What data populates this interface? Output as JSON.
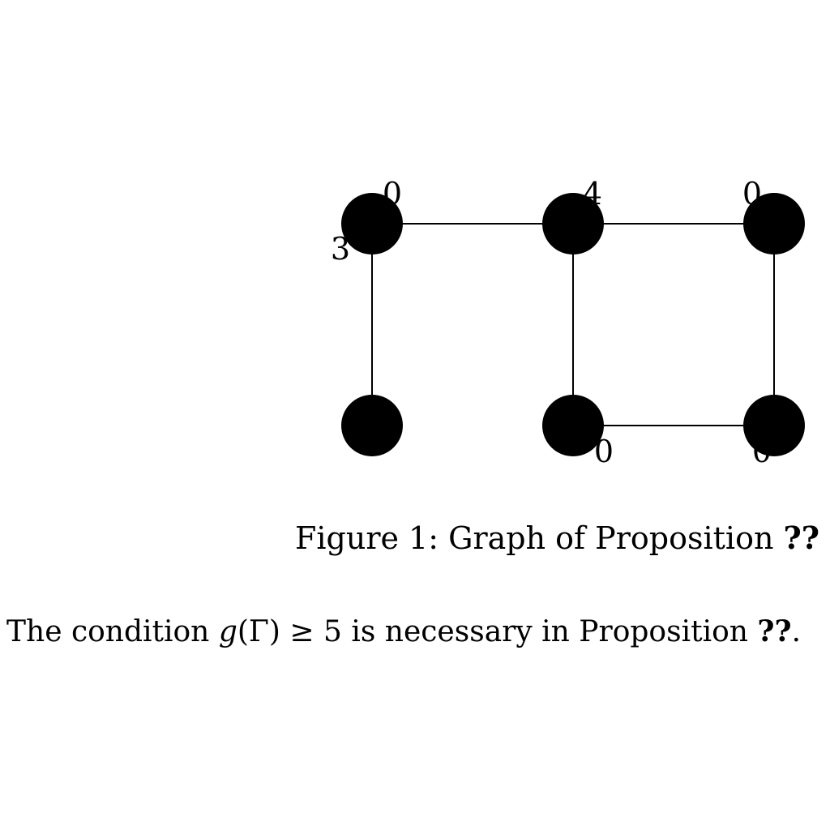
{
  "figure": {
    "vertices": [
      {
        "id": "v1",
        "label": "0",
        "label2": "3"
      },
      {
        "id": "v2",
        "label": "4"
      },
      {
        "id": "v3",
        "label": "0"
      },
      {
        "id": "v4",
        "label": ""
      },
      {
        "id": "v5",
        "label": "0"
      },
      {
        "id": "v6",
        "label": "0"
      }
    ],
    "edges": [
      [
        "v1",
        "v2"
      ],
      [
        "v2",
        "v3"
      ],
      [
        "v1",
        "v4"
      ],
      [
        "v2",
        "v5"
      ],
      [
        "v3",
        "v6"
      ],
      [
        "v5",
        "v6"
      ]
    ],
    "caption_prefix": "Figure 1: Graph of Proposition ",
    "caption_ref": "??"
  },
  "text": {
    "sentence_start": "The condition ",
    "math_g": "g",
    "math_open": "(",
    "math_gamma": "Γ",
    "math_close": ")",
    "math_geq": " ≥ 5",
    "sentence_mid": " is necessary in Proposition ",
    "sentence_ref": "??",
    "sentence_end": "."
  }
}
